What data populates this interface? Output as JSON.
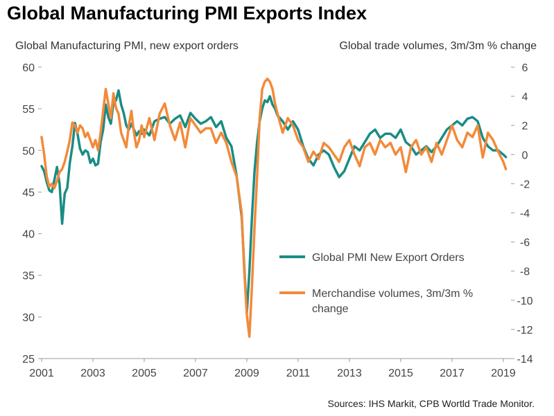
{
  "title": "Global Manufacturing PMI Exports Index",
  "source": "Sources: IHS Markit, CPB Wortld Trade Monitor.",
  "colors": {
    "pmi": "#1a8c84",
    "trade": "#f28a3a",
    "axis": "#999999",
    "text": "#444444"
  },
  "chart_data": {
    "type": "line",
    "title": "Global Manufacturing PMI Exports Index",
    "ylabel": "Global Manufacturing PMI, new export orders",
    "y2label": "Global trade volumes,  3m/3m % change",
    "xlim": [
      2001,
      2019.3
    ],
    "ylim": [
      25,
      60
    ],
    "y2lim": [
      -14,
      6
    ],
    "x_ticks": [
      "2001",
      "2003",
      "2005",
      "2007",
      "2009",
      "2011",
      "2013",
      "2015",
      "2017",
      "2019"
    ],
    "y_ticks": [
      "60",
      "55",
      "50",
      "45",
      "40",
      "35",
      "30",
      "25"
    ],
    "y2_ticks": [
      "6",
      "4",
      "2",
      "0",
      "-2",
      "-4",
      "-6",
      "-8",
      "-10",
      "-12",
      "-14"
    ],
    "legend": {
      "position": "center-right",
      "entries": [
        "Global PMI New Export Orders",
        "Merchandise volumes, 3m/3m % change"
      ]
    },
    "series": [
      {
        "name": "Global PMI New Export Orders",
        "axis": "left",
        "x": [
          2001.0,
          2001.1,
          2001.2,
          2001.3,
          2001.4,
          2001.5,
          2001.6,
          2001.7,
          2001.8,
          2001.9,
          2002.0,
          2002.1,
          2002.2,
          2002.3,
          2002.4,
          2002.5,
          2002.6,
          2002.7,
          2002.8,
          2002.9,
          2003.0,
          2003.1,
          2003.2,
          2003.3,
          2003.4,
          2003.5,
          2003.6,
          2003.7,
          2003.8,
          2003.9,
          2004.0,
          2004.1,
          2004.2,
          2004.3,
          2004.4,
          2004.5,
          2004.6,
          2004.7,
          2004.8,
          2004.9,
          2005.0,
          2005.2,
          2005.4,
          2005.6,
          2005.8,
          2006.0,
          2006.2,
          2006.4,
          2006.6,
          2006.8,
          2007.0,
          2007.2,
          2007.4,
          2007.6,
          2007.8,
          2008.0,
          2008.2,
          2008.4,
          2008.6,
          2008.8,
          2008.9,
          2009.0,
          2009.1,
          2009.2,
          2009.3,
          2009.4,
          2009.5,
          2009.6,
          2009.7,
          2009.8,
          2009.9,
          2010.0,
          2010.1,
          2010.2,
          2010.4,
          2010.6,
          2010.8,
          2011.0,
          2011.2,
          2011.4,
          2011.6,
          2011.8,
          2012.0,
          2012.2,
          2012.4,
          2012.6,
          2012.8,
          2013.0,
          2013.2,
          2013.4,
          2013.6,
          2013.8,
          2014.0,
          2014.2,
          2014.4,
          2014.6,
          2014.8,
          2015.0,
          2015.2,
          2015.4,
          2015.6,
          2015.8,
          2016.0,
          2016.2,
          2016.4,
          2016.6,
          2016.8,
          2017.0,
          2017.2,
          2017.4,
          2017.6,
          2017.8,
          2018.0,
          2018.2,
          2018.4,
          2018.6,
          2018.8,
          2019.0,
          2019.1
        ],
        "values": [
          48.1,
          47.5,
          46.2,
          45.2,
          45.0,
          46.5,
          48.0,
          46.0,
          41.2,
          44.8,
          45.5,
          48.5,
          50.5,
          53.3,
          52.0,
          50.2,
          49.5,
          50.0,
          49.8,
          48.5,
          49.0,
          48.2,
          48.4,
          51.0,
          52.5,
          55.5,
          54.0,
          53.2,
          55.8,
          56.0,
          57.2,
          55.5,
          54.5,
          53.0,
          52.5,
          53.2,
          52.5,
          51.8,
          52.3,
          52.0,
          52.5,
          51.8,
          53.5,
          53.8,
          54.0,
          53.2,
          53.8,
          54.2,
          52.8,
          54.5,
          53.8,
          53.2,
          53.5,
          54.0,
          52.8,
          53.5,
          51.5,
          50.5,
          47.0,
          42.0,
          36.0,
          30.5,
          35.5,
          42.0,
          47.5,
          51.0,
          53.5,
          55.0,
          56.0,
          55.8,
          56.5,
          55.5,
          55.0,
          54.2,
          53.5,
          52.5,
          53.5,
          52.5,
          50.5,
          49.0,
          48.2,
          49.5,
          50.0,
          49.5,
          48.0,
          46.8,
          47.5,
          49.0,
          50.5,
          50.0,
          51.0,
          52.0,
          52.5,
          51.5,
          52.0,
          52.0,
          51.5,
          52.5,
          51.0,
          50.5,
          49.5,
          50.0,
          50.5,
          49.8,
          50.5,
          51.5,
          52.5,
          53.0,
          53.5,
          53.0,
          53.8,
          54.0,
          53.5,
          51.5,
          50.5,
          50.0,
          50.0,
          49.5,
          49.2
        ]
      },
      {
        "name": "Merchandise volumes, 3m/3m % change",
        "axis": "right",
        "x": [
          2001.0,
          2001.1,
          2001.2,
          2001.3,
          2001.4,
          2001.5,
          2001.6,
          2001.7,
          2001.8,
          2001.9,
          2002.0,
          2002.1,
          2002.2,
          2002.3,
          2002.4,
          2002.5,
          2002.6,
          2002.7,
          2002.8,
          2002.9,
          2003.0,
          2003.1,
          2003.2,
          2003.3,
          2003.4,
          2003.5,
          2003.6,
          2003.7,
          2003.8,
          2003.9,
          2004.0,
          2004.1,
          2004.2,
          2004.3,
          2004.4,
          2004.5,
          2004.6,
          2004.7,
          2004.8,
          2004.9,
          2005.0,
          2005.2,
          2005.4,
          2005.6,
          2005.8,
          2006.0,
          2006.2,
          2006.4,
          2006.6,
          2006.8,
          2007.0,
          2007.2,
          2007.4,
          2007.6,
          2007.8,
          2008.0,
          2008.2,
          2008.4,
          2008.6,
          2008.8,
          2008.9,
          2009.0,
          2009.1,
          2009.2,
          2009.3,
          2009.4,
          2009.5,
          2009.6,
          2009.7,
          2009.8,
          2009.9,
          2010.0,
          2010.1,
          2010.2,
          2010.4,
          2010.6,
          2010.8,
          2011.0,
          2011.2,
          2011.4,
          2011.6,
          2011.8,
          2012.0,
          2012.2,
          2012.4,
          2012.6,
          2012.8,
          2013.0,
          2013.2,
          2013.4,
          2013.6,
          2013.8,
          2014.0,
          2014.2,
          2014.4,
          2014.6,
          2014.8,
          2015.0,
          2015.2,
          2015.4,
          2015.6,
          2015.8,
          2016.0,
          2016.2,
          2016.4,
          2016.6,
          2016.8,
          2017.0,
          2017.2,
          2017.4,
          2017.6,
          2017.8,
          2018.0,
          2018.2,
          2018.4,
          2018.6,
          2018.8,
          2019.0,
          2019.1
        ],
        "values": [
          1.2,
          0.0,
          -1.5,
          -2.2,
          -2.0,
          -2.3,
          -1.8,
          -1.2,
          -1.0,
          -0.5,
          0.2,
          1.0,
          2.2,
          2.0,
          1.5,
          2.0,
          1.8,
          1.2,
          1.5,
          1.0,
          0.5,
          1.0,
          0.3,
          1.5,
          3.0,
          4.5,
          3.5,
          2.5,
          4.2,
          3.2,
          2.8,
          1.5,
          1.0,
          0.5,
          2.0,
          3.0,
          1.5,
          0.5,
          1.0,
          2.0,
          1.2,
          2.5,
          1.0,
          2.8,
          3.5,
          2.0,
          1.0,
          2.2,
          0.5,
          2.5,
          2.0,
          1.5,
          1.8,
          1.8,
          0.8,
          1.5,
          0.8,
          -0.5,
          -1.5,
          -4.0,
          -8.0,
          -11.0,
          -12.5,
          -9.0,
          -5.0,
          -1.5,
          2.5,
          4.5,
          5.0,
          5.2,
          5.0,
          4.5,
          3.5,
          2.8,
          1.5,
          2.5,
          2.0,
          1.0,
          0.5,
          -0.5,
          0.2,
          -0.3,
          0.8,
          0.5,
          0.0,
          -0.5,
          0.5,
          1.0,
          0.0,
          -0.8,
          0.5,
          0.8,
          0.0,
          1.0,
          0.5,
          0.8,
          0.0,
          0.5,
          -1.2,
          0.5,
          1.0,
          0.0,
          0.5,
          -0.5,
          0.8,
          0.0,
          1.0,
          2.0,
          1.0,
          0.5,
          1.5,
          1.2,
          2.0,
          -0.2,
          1.5,
          1.0,
          0.2,
          -0.5,
          -1.0
        ]
      }
    ]
  }
}
